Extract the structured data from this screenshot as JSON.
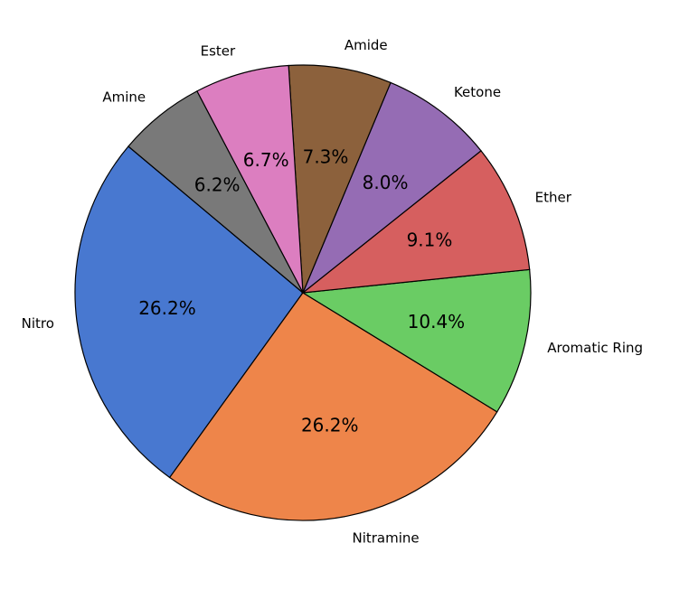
{
  "chart_data": {
    "type": "pie",
    "categories": [
      "Nitro",
      "Nitramine",
      "Aromatic Ring",
      "Ether",
      "Ketone",
      "Amide",
      "Ester",
      "Amine"
    ],
    "values": [
      26.2,
      26.2,
      10.4,
      9.1,
      8.0,
      7.3,
      6.7,
      6.2
    ],
    "value_labels": [
      "26.2%",
      "26.2%",
      "10.4%",
      "9.1%",
      "8.0%",
      "7.3%",
      "6.7%",
      "6.2%"
    ],
    "colors": [
      "#4878d0",
      "#ee854a",
      "#6acc64",
      "#d65f5f",
      "#956cb4",
      "#8c613c",
      "#dc7ec0",
      "#797979"
    ],
    "startangle": 140
  }
}
